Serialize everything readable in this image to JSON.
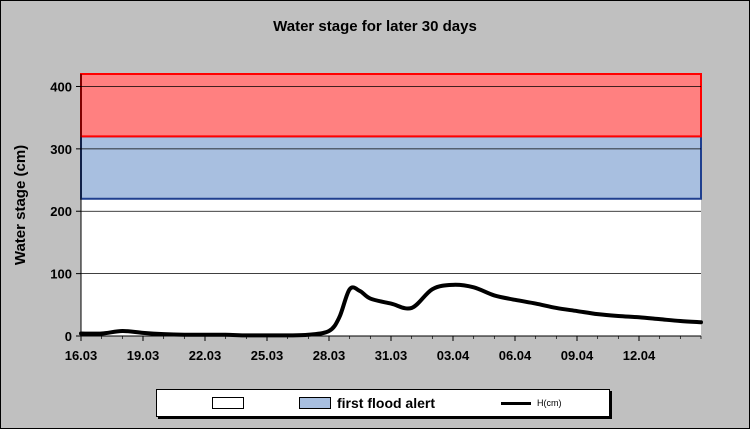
{
  "chart_data": {
    "type": "line",
    "title": "Water stage for later 30 days",
    "ylabel": "Water stage (cm)",
    "xlabel": "",
    "ylim": [
      0,
      420
    ],
    "yticks": [
      0,
      100,
      200,
      300,
      400
    ],
    "xlim": [
      "16.03",
      "15.04"
    ],
    "xticks": [
      "16.03",
      "19.03",
      "22.03",
      "25.03",
      "28.03",
      "31.03",
      "03.04",
      "06.04",
      "09.04",
      "12.04"
    ],
    "grid": true,
    "legend_position": "bottom",
    "bands": [
      {
        "name": "",
        "from": 220,
        "to": 320,
        "fill": "#a8bfe0",
        "border": "#1f3f8f"
      },
      {
        "name": "",
        "from": 320,
        "to": 420,
        "fill": "#ff8080",
        "border": "#ff0000"
      }
    ],
    "series": [
      {
        "name": "H(cm)",
        "color": "#000000",
        "x": [
          "16.03",
          "17.03",
          "18.03",
          "19.03",
          "20.03",
          "21.03",
          "22.03",
          "23.03",
          "24.03",
          "25.03",
          "26.03",
          "27.03",
          "28.03",
          "28.03 12:00",
          "29.03",
          "29.03 12:00",
          "30.03",
          "31.03",
          "01.04",
          "02.04",
          "03.04",
          "04.04",
          "05.04",
          "06.04",
          "07.04",
          "08.04",
          "09.04",
          "10.04",
          "11.04",
          "12.04",
          "13.04",
          "14.04",
          "15.04"
        ],
        "values": [
          4,
          4,
          8,
          5,
          3,
          2,
          2,
          2,
          1,
          1,
          1,
          2,
          8,
          30,
          75,
          72,
          60,
          52,
          45,
          75,
          82,
          78,
          65,
          58,
          52,
          45,
          40,
          35,
          32,
          30,
          27,
          24,
          22
        ]
      }
    ]
  },
  "legend": {
    "items": [
      {
        "label": "",
        "fill": "#ffffff"
      },
      {
        "label": "first flood alert",
        "fill": "#a8bfe0"
      },
      {
        "label": "H(cm)",
        "type": "line"
      }
    ]
  }
}
